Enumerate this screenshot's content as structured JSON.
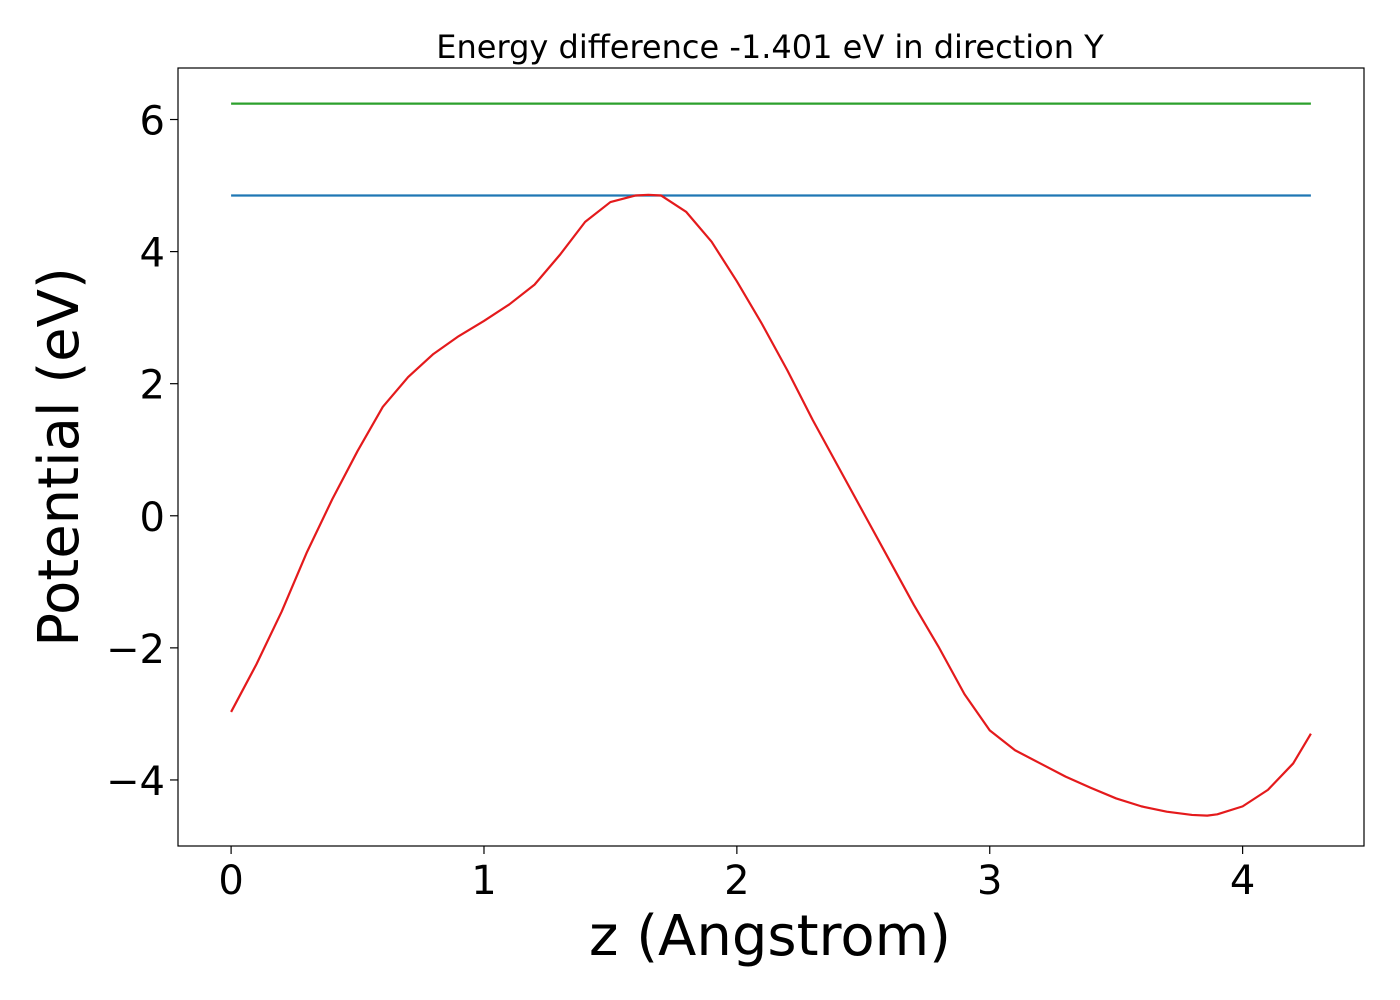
{
  "chart_data": {
    "type": "line",
    "title": "Energy difference -1.401 eV in direction Y",
    "xlabel": "z (Angstrom)",
    "ylabel": "Potential (eV)",
    "xlim": [
      -0.21,
      4.48
    ],
    "ylim": [
      -5.0,
      6.78
    ],
    "xticks": [
      0,
      1,
      2,
      3,
      4
    ],
    "xtick_labels": [
      "0",
      "1",
      "2",
      "3",
      "4"
    ],
    "yticks": [
      -4,
      -2,
      0,
      2,
      4,
      6
    ],
    "ytick_labels": [
      "−4",
      "−2",
      "0",
      "2",
      "4",
      "6"
    ],
    "grid": false,
    "series": [
      {
        "color": "#2ca02c",
        "x": [
          0,
          4.27
        ],
        "y": [
          6.24,
          6.24
        ]
      },
      {
        "color": "#1f77b4",
        "x": [
          0,
          4.27
        ],
        "y": [
          4.85,
          4.85
        ]
      },
      {
        "color": "#e41a1c",
        "x": [
          0,
          0.1,
          0.2,
          0.3,
          0.4,
          0.5,
          0.6,
          0.7,
          0.8,
          0.9,
          1.0,
          1.1,
          1.2,
          1.3,
          1.4,
          1.5,
          1.6,
          1.65,
          1.7,
          1.8,
          1.9,
          2.0,
          2.1,
          2.2,
          2.3,
          2.4,
          2.5,
          2.6,
          2.7,
          2.8,
          2.9,
          3.0,
          3.1,
          3.2,
          3.3,
          3.4,
          3.5,
          3.6,
          3.7,
          3.8,
          3.86,
          3.9,
          4.0,
          4.1,
          4.2,
          4.27
        ],
        "y": [
          -2.97,
          -2.25,
          -1.45,
          -0.55,
          0.25,
          0.98,
          1.65,
          2.1,
          2.45,
          2.72,
          2.95,
          3.2,
          3.5,
          3.95,
          4.45,
          4.75,
          4.85,
          4.86,
          4.85,
          4.6,
          4.15,
          3.55,
          2.9,
          2.2,
          1.45,
          0.75,
          0.05,
          -0.65,
          -1.35,
          -2.0,
          -2.7,
          -3.25,
          -3.55,
          -3.75,
          -3.95,
          -4.12,
          -4.28,
          -4.4,
          -4.48,
          -4.53,
          -4.54,
          -4.52,
          -4.4,
          -4.15,
          -3.75,
          -3.3
        ]
      }
    ]
  }
}
